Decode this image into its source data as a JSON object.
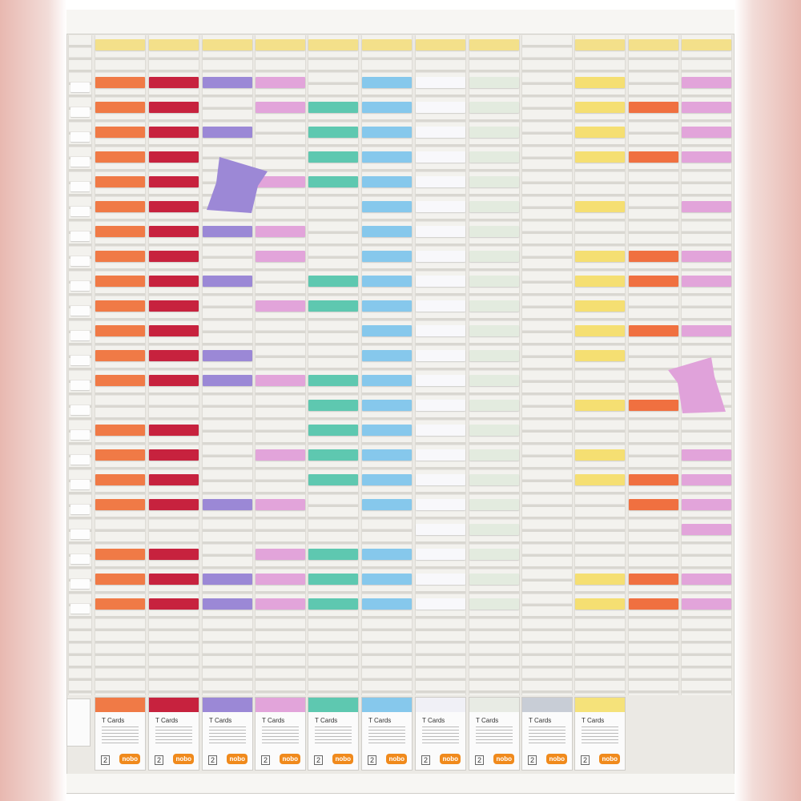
{
  "boxes": [
    {
      "title": "T Cards",
      "number": "2",
      "brand": "nobo"
    },
    {
      "title": "T Cards",
      "number": "2",
      "brand": "nobo"
    },
    {
      "title": "T Cards",
      "number": "2",
      "brand": "nobo"
    },
    {
      "title": "T Cards",
      "number": "2",
      "brand": "nobo"
    },
    {
      "title": "T Cards",
      "number": "2",
      "brand": "nobo"
    },
    {
      "title": "T Cards",
      "number": "2",
      "brand": "nobo"
    },
    {
      "title": "T Cards",
      "number": "2",
      "brand": "nobo"
    },
    {
      "title": "T Cards",
      "number": "2",
      "brand": "nobo"
    },
    {
      "title": "T Cards",
      "number": "2",
      "brand": "nobo"
    },
    {
      "title": "T Cards",
      "number": "2",
      "brand": "nobo"
    }
  ]
}
